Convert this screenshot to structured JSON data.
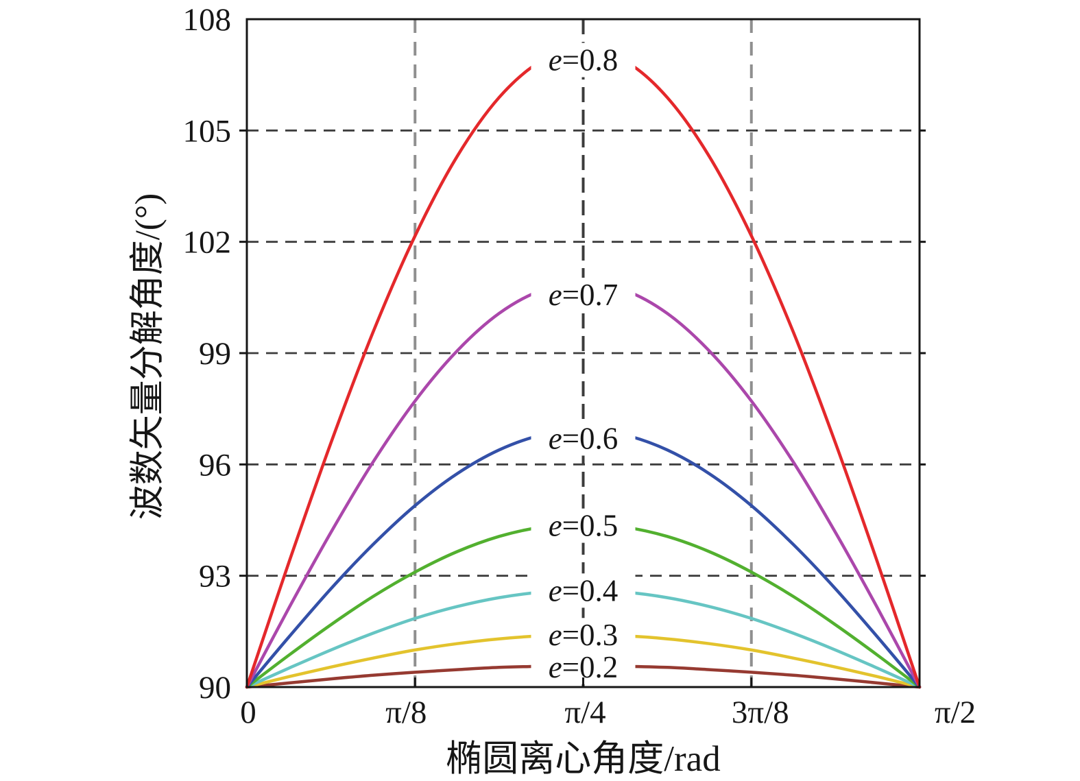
{
  "figure": {
    "background": "#ffffff",
    "text_color": "#161616",
    "axis_color": "#161616"
  },
  "chart_data": {
    "type": "line",
    "title": "",
    "xlabel": "椭圆离心角度/rad",
    "ylabel": "波数矢量分解角度/(°)",
    "xlim": [
      0,
      1.5708
    ],
    "ylim": [
      90,
      108
    ],
    "legend_position": "inline-labels-at-curve-peaks",
    "x_ticks": [
      {
        "v": 0,
        "label": "0"
      },
      {
        "v": 0.3927,
        "label": "π/8"
      },
      {
        "v": 0.7854,
        "label": "π/4"
      },
      {
        "v": 1.1781,
        "label": "3π/8"
      },
      {
        "v": 1.5708,
        "label": "π/2"
      }
    ],
    "y_ticks": [
      {
        "v": 90,
        "label": "90"
      },
      {
        "v": 93,
        "label": "93"
      },
      {
        "v": 96,
        "label": "96"
      },
      {
        "v": 99,
        "label": "99"
      },
      {
        "v": 102,
        "label": "102"
      },
      {
        "v": 105,
        "label": "105"
      },
      {
        "v": 108,
        "label": "108"
      }
    ],
    "grid": {
      "horizontal_at": [
        93,
        96,
        99,
        102,
        105
      ],
      "vertical_at": [
        0.3927,
        0.7854,
        1.1781
      ],
      "h_color": "#3c3c3c",
      "v_color": "#8f8f8f",
      "v_center_color": "#3c3c3c"
    },
    "x": [
      0,
      0.0982,
      0.1963,
      0.2945,
      0.3927,
      0.4909,
      0.589,
      0.6872,
      0.7854,
      0.8836,
      0.9817,
      1.0799,
      1.1781,
      1.2763,
      1.3744,
      1.4726,
      1.5708
    ],
    "series": [
      {
        "name": "e=0.2",
        "label_italic": "e",
        "label_rest": "=0.2",
        "color": "#963a31",
        "peak": 90.57,
        "label_y": 90.54,
        "values": [
          90,
          90.11,
          90.22,
          90.32,
          90.4,
          90.47,
          90.53,
          90.56,
          90.57,
          90.56,
          90.53,
          90.47,
          90.4,
          90.32,
          90.22,
          90.11,
          90
        ]
      },
      {
        "name": "e=0.3",
        "label_italic": "e",
        "label_rest": "=0.3",
        "color": "#e3c32d",
        "peak": 91.41,
        "label_y": 91.4,
        "values": [
          90,
          90.28,
          90.54,
          90.78,
          91.0,
          91.17,
          91.3,
          91.38,
          91.41,
          91.38,
          91.3,
          91.17,
          91.0,
          90.78,
          90.54,
          90.28,
          90
        ]
      },
      {
        "name": "e=0.4",
        "label_italic": "e",
        "label_rest": "=0.4",
        "color": "#66c5c3",
        "peak": 92.61,
        "label_y": 92.6,
        "values": [
          90,
          90.51,
          91.0,
          91.45,
          91.85,
          92.17,
          92.41,
          92.56,
          92.61,
          92.56,
          92.41,
          92.17,
          91.85,
          91.45,
          91.0,
          90.51,
          90
        ]
      },
      {
        "name": "e=0.5",
        "label_italic": "e",
        "label_rest": "=0.5",
        "color": "#52b02f",
        "peak": 94.39,
        "label_y": 94.35,
        "values": [
          90,
          90.86,
          91.68,
          92.44,
          93.1,
          93.65,
          94.06,
          94.31,
          94.39,
          94.31,
          94.06,
          93.65,
          93.1,
          92.44,
          91.68,
          90.86,
          90
        ]
      },
      {
        "name": "e=0.6",
        "label_italic": "e",
        "label_rest": "=0.6",
        "color": "#3350a8",
        "peak": 96.92,
        "label_y": 96.7,
        "values": [
          90,
          91.35,
          92.65,
          93.84,
          94.89,
          95.75,
          96.39,
          96.79,
          96.92,
          96.79,
          96.39,
          95.75,
          94.89,
          93.84,
          92.65,
          91.35,
          90
        ]
      },
      {
        "name": "e=0.7",
        "label_italic": "e",
        "label_rest": "=0.7",
        "color": "#ab47ab",
        "peak": 100.9,
        "label_y": 100.57,
        "values": [
          90,
          92.13,
          94.17,
          96.06,
          97.71,
          99.06,
          100.07,
          100.69,
          100.9,
          100.69,
          100.07,
          99.06,
          97.71,
          96.06,
          94.17,
          92.13,
          90
        ]
      },
      {
        "name": "e=0.8",
        "label_italic": "e",
        "label_rest": "=0.8",
        "color": "#e4282b",
        "peak": 107.2,
        "label_y": 106.9,
        "values": [
          90,
          93.36,
          96.58,
          99.56,
          102.16,
          104.3,
          105.89,
          106.87,
          107.2,
          106.87,
          105.89,
          104.3,
          102.16,
          99.56,
          96.58,
          93.36,
          90
        ]
      }
    ]
  }
}
